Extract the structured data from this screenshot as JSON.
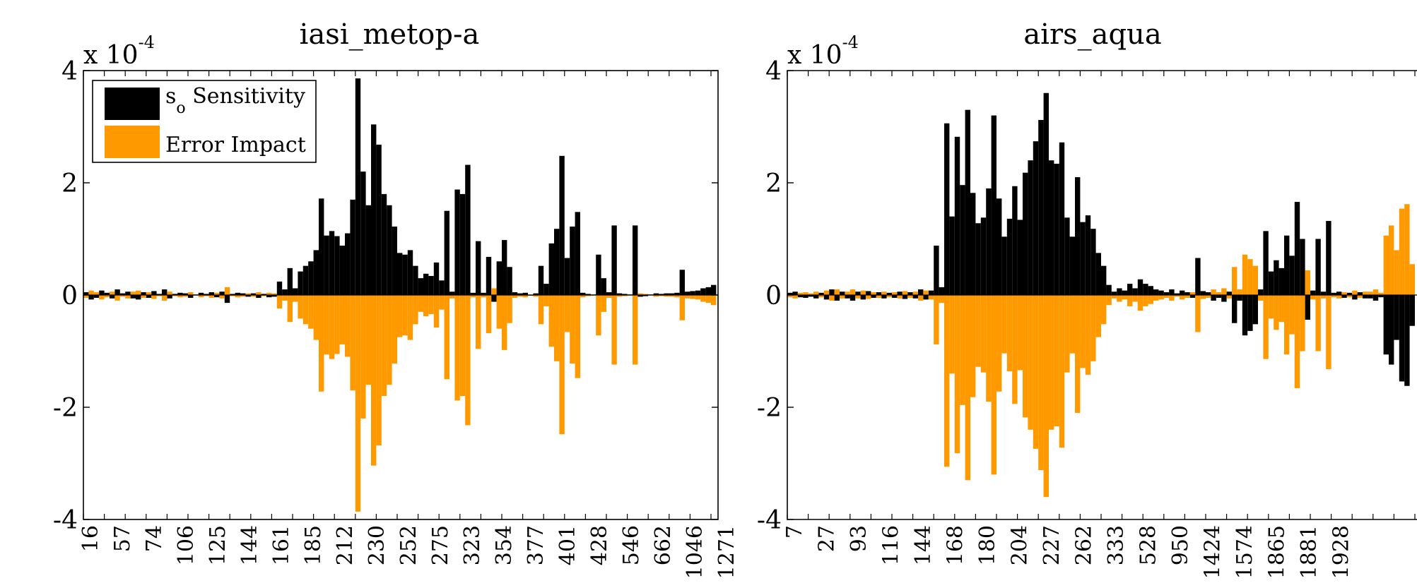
{
  "colors": {
    "sensitivity": "#000000",
    "error_impact": "#FF9900",
    "axis": "#000000",
    "background": "#FFFFFF"
  },
  "legend": {
    "placement": "top-left",
    "items": [
      {
        "label_main": "s",
        "label_sub": "o",
        "label_rest": " Sensitivity",
        "color": "#000000"
      },
      {
        "label_main": "Error Impact",
        "label_sub": "",
        "label_rest": "",
        "color": "#FF9900"
      }
    ]
  },
  "chart_data": [
    {
      "type": "bar",
      "title": "iasi_metop-a",
      "y_multiplier_base": "x 10",
      "y_multiplier_exp": "-4",
      "ylim": [
        -4,
        4
      ],
      "yticks": [
        -4,
        -2,
        0,
        2,
        4
      ],
      "grid": false,
      "x_tick_labels": [
        "16",
        "57",
        "74",
        "106",
        "125",
        "144",
        "161",
        "185",
        "212",
        "230",
        "252",
        "275",
        "323",
        "354",
        "377",
        "401",
        "428",
        "546",
        "662",
        "1046",
        "1271"
      ],
      "series": [
        {
          "name": "s_o Sensitivity",
          "color": "#000000",
          "values": [
            0.05,
            -0.08,
            -0.05,
            0.08,
            0.04,
            -0.06,
            0.1,
            0.03,
            0.06,
            -0.06,
            -0.08,
            0.05,
            -0.05,
            0.07,
            0.02,
            0.1,
            -0.06,
            0.02,
            0.04,
            0.03,
            -0.05,
            0.01,
            0.04,
            0.02,
            0.05,
            -0.04,
            0.06,
            -0.14,
            0.02,
            0.04,
            0.03,
            -0.03,
            0.03,
            -0.05,
            0.02,
            -0.04,
            -0.03,
            0.24,
            0.1,
            0.48,
            0.12,
            0.42,
            0.52,
            0.6,
            0.8,
            1.72,
            1.06,
            1.14,
            1.05,
            0.88,
            1.1,
            1.7,
            3.86,
            2.2,
            1.6,
            3.04,
            2.68,
            1.8,
            1.6,
            1.22,
            0.75,
            0.72,
            0.8,
            0.52,
            0.3,
            0.38,
            0.34,
            0.58,
            0.26,
            1.5,
            0.06,
            1.88,
            1.8,
            2.32,
            0.04,
            0.96,
            0.04,
            0.68,
            -0.12,
            0.6,
            0.98,
            0.5,
            0.05,
            0.03,
            0.04,
            -0.01,
            0.03,
            0.52,
            0.2,
            0.92,
            1.18,
            2.48,
            0.66,
            1.22,
            1.48,
            0.04,
            0.02,
            0.01,
            0.72,
            0.3,
            0.05,
            1.24,
            0.03,
            0.02,
            0.01,
            1.24,
            -0.03,
            -0.02,
            0.01,
            0.03,
            0.02,
            0.03,
            0.03,
            0.04,
            0.45,
            0.06,
            0.07,
            0.08,
            0.12,
            0.14,
            0.18
          ]
        },
        {
          "name": "Error Impact",
          "color": "#FF9900",
          "values": [
            -0.05,
            0.08,
            0.05,
            -0.08,
            -0.04,
            0.06,
            -0.1,
            -0.03,
            -0.06,
            0.06,
            0.08,
            -0.05,
            0.05,
            -0.07,
            -0.02,
            -0.1,
            0.06,
            -0.02,
            -0.04,
            -0.03,
            0.05,
            -0.01,
            -0.04,
            -0.02,
            -0.05,
            0.04,
            -0.06,
            0.14,
            -0.02,
            -0.04,
            -0.03,
            0.03,
            -0.03,
            0.05,
            -0.02,
            0.04,
            0.03,
            -0.24,
            -0.1,
            -0.48,
            -0.12,
            -0.42,
            -0.52,
            -0.6,
            -0.8,
            -1.72,
            -1.06,
            -1.14,
            -1.05,
            -0.88,
            -1.1,
            -1.7,
            -3.86,
            -2.2,
            -1.6,
            -3.04,
            -2.68,
            -1.8,
            -1.6,
            -1.22,
            -0.75,
            -0.72,
            -0.8,
            -0.52,
            -0.3,
            -0.38,
            -0.34,
            -0.58,
            -0.26,
            -1.5,
            -0.06,
            -1.88,
            -1.8,
            -2.32,
            -0.04,
            -0.96,
            -0.04,
            -0.68,
            0.12,
            -0.6,
            -0.98,
            -0.5,
            -0.05,
            -0.03,
            -0.04,
            0.01,
            -0.03,
            -0.52,
            -0.2,
            -0.92,
            -1.18,
            -2.48,
            -0.66,
            -1.22,
            -1.48,
            -0.04,
            -0.02,
            -0.01,
            -0.72,
            -0.3,
            -0.05,
            -1.24,
            -0.03,
            -0.02,
            -0.01,
            -1.24,
            0.03,
            0.02,
            -0.01,
            -0.03,
            -0.02,
            -0.03,
            -0.03,
            -0.04,
            -0.45,
            -0.06,
            -0.07,
            -0.08,
            -0.12,
            -0.14,
            -0.18
          ]
        }
      ]
    },
    {
      "type": "bar",
      "title": "airs_aqua",
      "y_multiplier_base": "x 10",
      "y_multiplier_exp": "-4",
      "ylim": [
        -4,
        4
      ],
      "yticks": [
        -4,
        -2,
        0,
        2,
        4
      ],
      "grid": false,
      "x_tick_labels": [
        "7",
        "27",
        "93",
        "116",
        "144",
        "168",
        "180",
        "204",
        "227",
        "262",
        "333",
        "528",
        "950",
        "1424",
        "1574",
        "1865",
        "1881",
        "1928"
      ],
      "series": [
        {
          "name": "s_o Sensitivity",
          "color": "#000000",
          "values": [
            0.04,
            0.06,
            -0.04,
            -0.05,
            -0.03,
            -0.06,
            0.04,
            -0.08,
            0.1,
            -0.1,
            0.06,
            -0.06,
            -0.1,
            0.06,
            -0.08,
            0.07,
            -0.05,
            0.05,
            -0.06,
            0.04,
            -0.05,
            0.06,
            -0.07,
            0.05,
            -0.06,
            0.1,
            -0.08,
            0.08,
            0.88,
            0.14,
            3.06,
            1.4,
            2.82,
            1.96,
            3.3,
            1.82,
            1.28,
            1.38,
            1.9,
            3.2,
            1.72,
            1.04,
            1.36,
            1.94,
            1.34,
            2.18,
            2.4,
            2.74,
            3.12,
            3.6,
            2.4,
            2.34,
            2.72,
            1.38,
            1.04,
            2.1,
            1.3,
            1.42,
            1.18,
            0.75,
            0.52,
            0.18,
            0.06,
            0.12,
            0.08,
            0.2,
            0.12,
            0.28,
            0.2,
            0.16,
            0.1,
            0.08,
            0.05,
            0.1,
            0.03,
            0.08,
            0.05,
            -0.05,
            0.66,
            0.07,
            0.05,
            -0.1,
            -0.05,
            -0.12,
            0.06,
            -0.5,
            -0.1,
            -0.72,
            -0.64,
            -0.52,
            0.1,
            1.14,
            0.42,
            0.62,
            0.48,
            1.06,
            0.7,
            1.66,
            1.0,
            -0.44,
            0.08,
            1.0,
            0.06,
            1.32,
            0.04,
            0.06,
            -0.05,
            0.04,
            -0.08,
            0.05,
            -0.06,
            -0.06,
            -0.1,
            -0.04,
            -1.06,
            -1.24,
            -0.8,
            -1.54,
            -1.62,
            -0.55
          ]
        },
        {
          "name": "Error Impact",
          "color": "#FF9900",
          "values": [
            -0.04,
            -0.06,
            0.04,
            0.05,
            0.03,
            0.06,
            -0.04,
            0.08,
            -0.1,
            0.1,
            -0.06,
            0.06,
            0.1,
            -0.06,
            0.08,
            -0.07,
            0.05,
            -0.05,
            0.06,
            -0.04,
            0.05,
            -0.06,
            0.07,
            -0.05,
            0.06,
            -0.1,
            0.08,
            -0.08,
            -0.88,
            -0.14,
            -3.06,
            -1.4,
            -2.82,
            -1.96,
            -3.3,
            -1.82,
            -1.28,
            -1.38,
            -1.9,
            -3.2,
            -1.72,
            -1.04,
            -1.36,
            -1.94,
            -1.34,
            -2.18,
            -2.4,
            -2.74,
            -3.12,
            -3.6,
            -2.4,
            -2.34,
            -2.72,
            -1.38,
            -1.04,
            -2.1,
            -1.3,
            -1.42,
            -1.18,
            -0.75,
            -0.52,
            -0.18,
            -0.06,
            -0.12,
            -0.08,
            -0.2,
            -0.12,
            -0.28,
            -0.2,
            -0.16,
            -0.1,
            -0.08,
            -0.05,
            -0.1,
            -0.03,
            -0.08,
            -0.05,
            0.05,
            -0.66,
            -0.07,
            -0.05,
            0.1,
            0.05,
            0.12,
            -0.06,
            0.5,
            0.1,
            0.72,
            0.64,
            0.52,
            -0.1,
            -1.14,
            -0.42,
            -0.62,
            -0.48,
            -1.06,
            -0.7,
            -1.66,
            -1.0,
            0.44,
            -0.08,
            -1.0,
            -0.06,
            -1.32,
            -0.04,
            -0.06,
            0.05,
            -0.04,
            0.08,
            -0.05,
            0.06,
            0.06,
            0.1,
            0.04,
            1.06,
            1.24,
            0.8,
            1.54,
            1.62,
            0.55
          ]
        }
      ]
    }
  ]
}
